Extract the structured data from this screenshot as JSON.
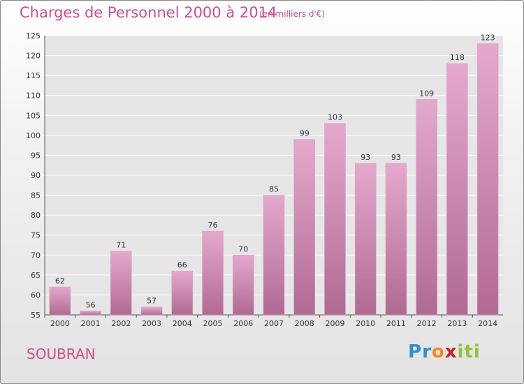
{
  "title": "Charges de Personnel 2000 à 2014",
  "subtitle": "(en milliers d'€)",
  "commune": "SOUBRAN",
  "logo": {
    "letters": [
      "P",
      "r",
      "o",
      "x",
      "i",
      "t",
      "i"
    ],
    "colors": [
      "#2d8fd6",
      "#2d8fd6",
      "#f08a1c",
      "#d21f1f",
      "#8cc43c",
      "#8cc43c",
      "#8cc43c"
    ]
  },
  "colors": {
    "accent": "#d24d8c",
    "bar_top": "#e5a9cd",
    "bar_bottom": "#b06a94"
  },
  "chart_data": {
    "type": "bar",
    "categories": [
      "2000",
      "2001",
      "2002",
      "2003",
      "2004",
      "2005",
      "2006",
      "2007",
      "2008",
      "2009",
      "2010",
      "2011",
      "2012",
      "2013",
      "2014"
    ],
    "values": [
      62,
      56,
      71,
      57,
      66,
      76,
      70,
      85,
      99,
      103,
      93,
      93,
      109,
      118,
      123
    ],
    "ylim": [
      55,
      125
    ],
    "yticks": [
      55,
      60,
      65,
      70,
      75,
      80,
      85,
      90,
      95,
      100,
      105,
      110,
      115,
      120,
      125
    ],
    "grid": true
  }
}
